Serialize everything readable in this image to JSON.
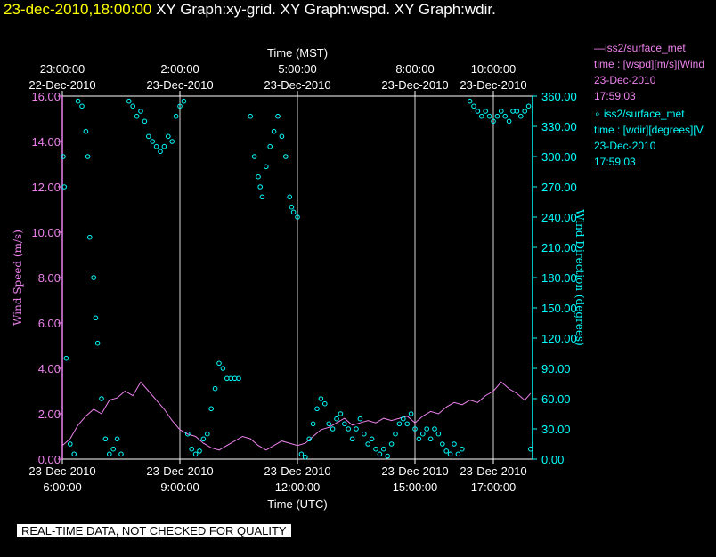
{
  "header": {
    "timestamp": "23-dec-2010,18:00:00",
    "graphs": "XY Graph:xy-grid.  XY Graph:wspd.  XY Graph:wdir."
  },
  "colors": {
    "wspd": "#ee82ee",
    "wdir": "#00ffff",
    "axis_left": "#ee82ee",
    "axis_right": "#00ffff",
    "text": "#ffffff",
    "grid": "#ffffff"
  },
  "legend": {
    "wspd": {
      "line1": "—iss2/surface_met",
      "line2": "time : [wspd][m/s][Wind",
      "line3": "23-Dec-2010",
      "line4": "17:59:03"
    },
    "wdir": {
      "line1": "∘  iss2/surface_met",
      "line2": "time : [wdir][degrees][V",
      "line3": "23-Dec-2010",
      "line4": "17:59:03"
    }
  },
  "footer": {
    "quality_note": "REAL-TIME DATA, NOT CHECKED FOR QUALITY"
  },
  "chart_data": {
    "type": "line",
    "x_range_hours_utc": [
      6.0,
      18.0
    ],
    "grid": true,
    "legend_position": "right",
    "top_axis": {
      "label": "Time (MST)",
      "ticks": [
        {
          "t": 6.0,
          "time": "23:00:00",
          "date": "22-Dec-2010"
        },
        {
          "t": 9.0,
          "time": "2:00:00",
          "date": "23-Dec-2010"
        },
        {
          "t": 12.0,
          "time": "5:00:00",
          "date": "23-Dec-2010"
        },
        {
          "t": 15.0,
          "time": "8:00:00",
          "date": "23-Dec-2010"
        },
        {
          "t": 17.0,
          "time": "10:00:00",
          "date": "23-Dec-2010"
        }
      ]
    },
    "bottom_axis": {
      "label": "Time (UTC)",
      "ticks": [
        {
          "t": 6.0,
          "date": "23-Dec-2010",
          "time": "6:00:00"
        },
        {
          "t": 9.0,
          "date": "23-Dec-2010",
          "time": "9:00:00"
        },
        {
          "t": 12.0,
          "date": "23-Dec-2010",
          "time": "12:00:00"
        },
        {
          "t": 15.0,
          "date": "23-Dec-2010",
          "time": "15:00:00"
        },
        {
          "t": 17.0,
          "date": "23-Dec-2010",
          "time": "17:00:00"
        }
      ]
    },
    "left_axis": {
      "label": "Wind Speed (m/s)",
      "ylim": [
        0,
        16
      ],
      "ticks": [
        "0.00",
        "2.00",
        "4.00",
        "6.00",
        "8.00",
        "10.00",
        "12.00",
        "14.00",
        "16.00"
      ]
    },
    "right_axis": {
      "label": "Wind Direction (degrees)",
      "ylim": [
        0,
        360
      ],
      "ticks": [
        "0.00",
        "30.00",
        "60.00",
        "90.00",
        "120.00",
        "150.00",
        "180.00",
        "210.00",
        "240.00",
        "270.00",
        "300.00",
        "330.00",
        "360.00"
      ]
    },
    "series": [
      {
        "name": "iss2/surface_met time : [wspd][m/s]",
        "style": "line",
        "points": [
          [
            6.0,
            0.6
          ],
          [
            6.2,
            0.9
          ],
          [
            6.4,
            1.5
          ],
          [
            6.6,
            1.9
          ],
          [
            6.8,
            2.2
          ],
          [
            7.0,
            2.0
          ],
          [
            7.2,
            2.6
          ],
          [
            7.4,
            2.7
          ],
          [
            7.6,
            3.0
          ],
          [
            7.8,
            2.8
          ],
          [
            8.0,
            3.4
          ],
          [
            8.2,
            3.0
          ],
          [
            8.4,
            2.6
          ],
          [
            8.6,
            2.2
          ],
          [
            8.8,
            1.7
          ],
          [
            9.0,
            1.3
          ],
          [
            9.2,
            1.1
          ],
          [
            9.4,
            1.0
          ],
          [
            9.6,
            0.7
          ],
          [
            9.8,
            0.5
          ],
          [
            10.0,
            0.4
          ],
          [
            10.2,
            0.6
          ],
          [
            10.4,
            0.8
          ],
          [
            10.6,
            1.0
          ],
          [
            10.8,
            0.9
          ],
          [
            11.0,
            0.6
          ],
          [
            11.2,
            0.4
          ],
          [
            11.4,
            0.6
          ],
          [
            11.6,
            0.8
          ],
          [
            11.8,
            0.7
          ],
          [
            12.0,
            0.6
          ],
          [
            12.2,
            0.7
          ],
          [
            12.4,
            1.0
          ],
          [
            12.6,
            1.3
          ],
          [
            12.8,
            1.4
          ],
          [
            13.0,
            1.6
          ],
          [
            13.2,
            1.8
          ],
          [
            13.4,
            1.5
          ],
          [
            13.6,
            1.6
          ],
          [
            13.8,
            1.7
          ],
          [
            14.0,
            1.6
          ],
          [
            14.2,
            1.8
          ],
          [
            14.4,
            1.7
          ],
          [
            14.6,
            1.8
          ],
          [
            14.8,
            1.9
          ],
          [
            15.0,
            1.6
          ],
          [
            15.2,
            1.9
          ],
          [
            15.4,
            2.1
          ],
          [
            15.6,
            2.0
          ],
          [
            15.8,
            2.3
          ],
          [
            16.0,
            2.5
          ],
          [
            16.2,
            2.4
          ],
          [
            16.4,
            2.6
          ],
          [
            16.6,
            2.5
          ],
          [
            16.8,
            2.8
          ],
          [
            17.0,
            3.0
          ],
          [
            17.2,
            3.4
          ],
          [
            17.4,
            3.1
          ],
          [
            17.6,
            2.9
          ],
          [
            17.8,
            2.6
          ],
          [
            17.95,
            2.9
          ]
        ]
      },
      {
        "name": "iss2/surface_met time : [wdir][degrees]",
        "style": "scatter",
        "points": [
          [
            6.02,
            300
          ],
          [
            6.05,
            270
          ],
          [
            6.1,
            100
          ],
          [
            6.2,
            15
          ],
          [
            6.3,
            5
          ],
          [
            6.4,
            355
          ],
          [
            6.5,
            350
          ],
          [
            6.6,
            325
          ],
          [
            6.65,
            300
          ],
          [
            6.7,
            220
          ],
          [
            6.8,
            180
          ],
          [
            6.85,
            140
          ],
          [
            6.9,
            115
          ],
          [
            7.0,
            60
          ],
          [
            7.1,
            20
          ],
          [
            7.2,
            5
          ],
          [
            7.3,
            10
          ],
          [
            7.4,
            20
          ],
          [
            7.5,
            5
          ],
          [
            7.7,
            355
          ],
          [
            7.8,
            350
          ],
          [
            7.9,
            340
          ],
          [
            8.0,
            345
          ],
          [
            8.1,
            335
          ],
          [
            8.2,
            320
          ],
          [
            8.3,
            315
          ],
          [
            8.4,
            310
          ],
          [
            8.5,
            305
          ],
          [
            8.6,
            310
          ],
          [
            8.7,
            320
          ],
          [
            8.8,
            315
          ],
          [
            8.9,
            340
          ],
          [
            9.0,
            350
          ],
          [
            9.1,
            355
          ],
          [
            9.2,
            25
          ],
          [
            9.3,
            10
          ],
          [
            9.4,
            5
          ],
          [
            9.5,
            8
          ],
          [
            9.6,
            20
          ],
          [
            9.7,
            25
          ],
          [
            9.8,
            50
          ],
          [
            9.9,
            70
          ],
          [
            10.0,
            95
          ],
          [
            10.1,
            90
          ],
          [
            10.2,
            80
          ],
          [
            10.3,
            80
          ],
          [
            10.4,
            80
          ],
          [
            10.5,
            80
          ],
          [
            10.8,
            340
          ],
          [
            10.9,
            300
          ],
          [
            11.0,
            280
          ],
          [
            11.05,
            270
          ],
          [
            11.1,
            260
          ],
          [
            11.2,
            290
          ],
          [
            11.3,
            310
          ],
          [
            11.4,
            325
          ],
          [
            11.5,
            340
          ],
          [
            11.6,
            320
          ],
          [
            11.7,
            300
          ],
          [
            11.8,
            260
          ],
          [
            11.85,
            250
          ],
          [
            11.9,
            245
          ],
          [
            12.0,
            240
          ],
          [
            12.1,
            5
          ],
          [
            12.2,
            2
          ],
          [
            12.3,
            20
          ],
          [
            12.4,
            35
          ],
          [
            12.5,
            50
          ],
          [
            12.6,
            60
          ],
          [
            12.7,
            55
          ],
          [
            12.8,
            35
          ],
          [
            12.9,
            30
          ],
          [
            13.0,
            40
          ],
          [
            13.1,
            45
          ],
          [
            13.2,
            35
          ],
          [
            13.3,
            30
          ],
          [
            13.4,
            20
          ],
          [
            13.5,
            30
          ],
          [
            13.6,
            40
          ],
          [
            13.7,
            25
          ],
          [
            13.8,
            15
          ],
          [
            13.9,
            20
          ],
          [
            14.0,
            10
          ],
          [
            14.1,
            5
          ],
          [
            14.2,
            10
          ],
          [
            14.3,
            3
          ],
          [
            14.4,
            15
          ],
          [
            14.5,
            25
          ],
          [
            14.6,
            35
          ],
          [
            14.7,
            40
          ],
          [
            14.8,
            35
          ],
          [
            14.9,
            45
          ],
          [
            15.0,
            30
          ],
          [
            15.1,
            20
          ],
          [
            15.2,
            25
          ],
          [
            15.3,
            30
          ],
          [
            15.4,
            20
          ],
          [
            15.5,
            30
          ],
          [
            15.6,
            25
          ],
          [
            15.7,
            15
          ],
          [
            15.8,
            8
          ],
          [
            15.9,
            5
          ],
          [
            16.0,
            15
          ],
          [
            16.1,
            5
          ],
          [
            16.2,
            10
          ],
          [
            16.4,
            355
          ],
          [
            16.5,
            350
          ],
          [
            16.6,
            345
          ],
          [
            16.7,
            340
          ],
          [
            16.8,
            345
          ],
          [
            16.9,
            340
          ],
          [
            17.0,
            335
          ],
          [
            17.1,
            340
          ],
          [
            17.2,
            345
          ],
          [
            17.3,
            340
          ],
          [
            17.4,
            335
          ],
          [
            17.5,
            345
          ],
          [
            17.6,
            345
          ],
          [
            17.7,
            340
          ],
          [
            17.8,
            345
          ],
          [
            17.9,
            350
          ],
          [
            17.95,
            10
          ]
        ]
      }
    ]
  }
}
